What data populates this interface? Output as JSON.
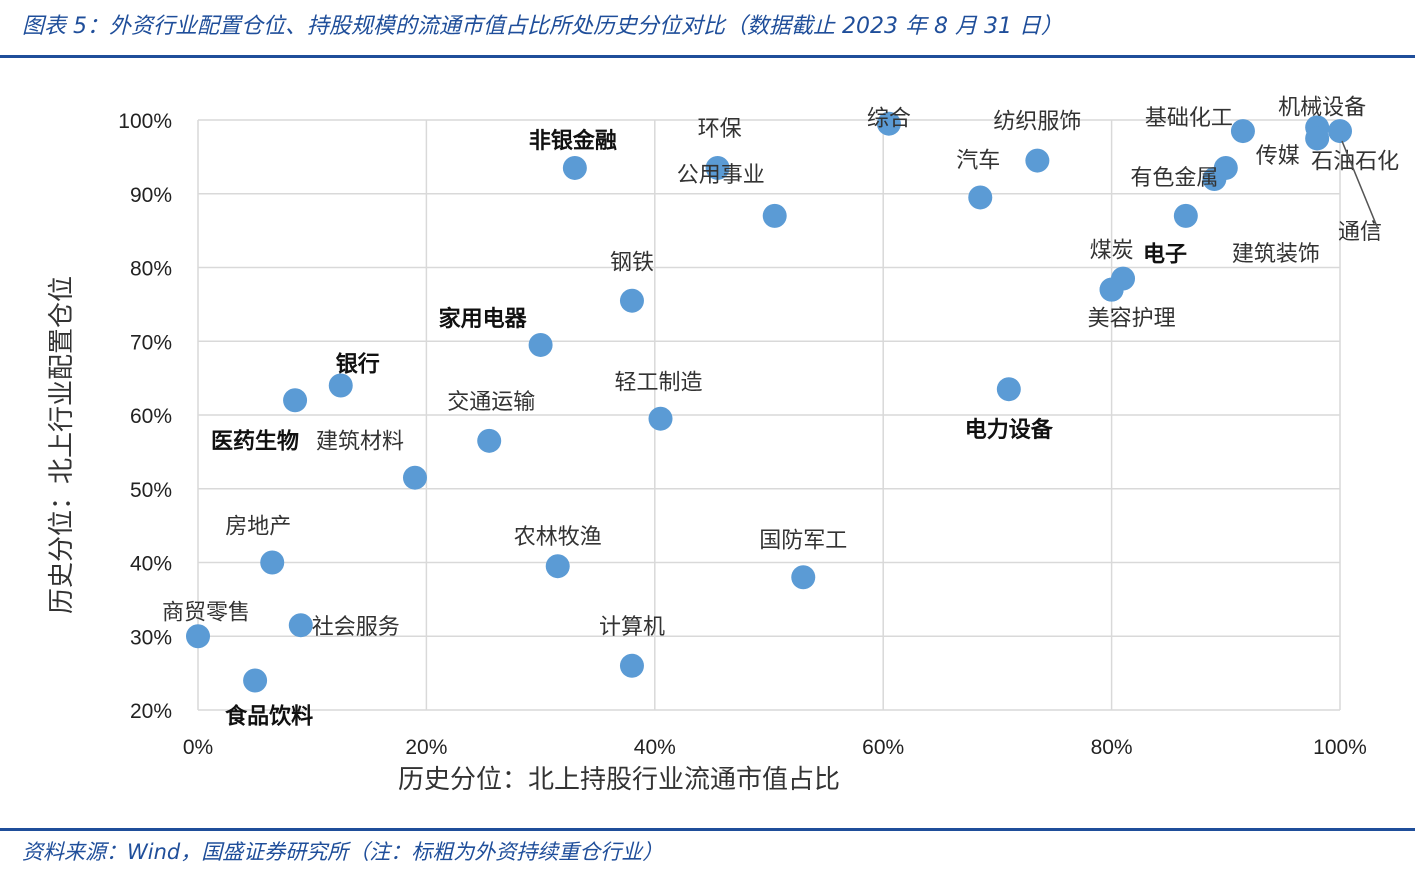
{
  "figure": {
    "title": "图表 5：外资行业配置仓位、持股规模的流通市值占比所处历史分位对比（数据截止 2023 年 8 月 31 日）",
    "source": "资料来源：Wind，国盛证券研究所（注：标粗为外资持续重仓行业）"
  },
  "colors": {
    "point": "#5b9bd5",
    "grid": "#d9d9d9",
    "accent": "#1f4e9a"
  },
  "chart_data": {
    "type": "scatter",
    "xlabel": "历史分位：北上持股行业流通市值占比",
    "ylabel": "历史分位：北上行业配置仓位",
    "xlim": [
      0,
      100
    ],
    "ylim": [
      20,
      100
    ],
    "x_ticks": [
      "0%",
      "20%",
      "40%",
      "60%",
      "80%",
      "100%"
    ],
    "y_ticks": [
      "20%",
      "30%",
      "40%",
      "50%",
      "60%",
      "70%",
      "80%",
      "90%",
      "100%"
    ],
    "grid": true,
    "points": [
      {
        "name": "非银金融",
        "x": 33.0,
        "y": 93.5,
        "bold": true
      },
      {
        "name": "环保",
        "x": 45.5,
        "y": 93.5,
        "bold": false
      },
      {
        "name": "公用事业",
        "x": 50.5,
        "y": 87.0,
        "bold": false
      },
      {
        "name": "综合",
        "x": 60.5,
        "y": 99.5,
        "bold": false
      },
      {
        "name": "汽车",
        "x": 68.5,
        "y": 89.5,
        "bold": false
      },
      {
        "name": "纺织服饰",
        "x": 73.5,
        "y": 94.5,
        "bold": false
      },
      {
        "name": "基础化工",
        "x": 91.5,
        "y": 98.5,
        "bold": false
      },
      {
        "name": "有色金属",
        "x": 89.0,
        "y": 92.0,
        "bold": false
      },
      {
        "name": "传媒",
        "x": 90.0,
        "y": 93.5,
        "bold": false
      },
      {
        "name": "机械设备",
        "x": 98.0,
        "y": 99.0,
        "bold": false
      },
      {
        "name": "石油石化",
        "x": 98.0,
        "y": 97.5,
        "bold": false
      },
      {
        "name": "通信",
        "x": 100.0,
        "y": 98.5,
        "bold": false
      },
      {
        "name": "建筑装饰",
        "x": 86.5,
        "y": 87.0,
        "bold": false
      },
      {
        "name": "煤炭",
        "x": 80.0,
        "y": 77.0,
        "bold": false
      },
      {
        "name": "电子",
        "x": 81.0,
        "y": 78.5,
        "bold": true
      },
      {
        "name": "钢铁",
        "x": 38.0,
        "y": 75.5,
        "bold": false
      },
      {
        "name": "家用电器",
        "x": 30.0,
        "y": 69.5,
        "bold": true
      },
      {
        "name": "银行",
        "x": 12.5,
        "y": 64.0,
        "bold": true
      },
      {
        "name": "医药生物",
        "x": 8.5,
        "y": 62.0,
        "bold": true
      },
      {
        "name": "交通运输",
        "x": 25.5,
        "y": 56.5,
        "bold": false
      },
      {
        "name": "轻工制造",
        "x": 40.5,
        "y": 59.5,
        "bold": false
      },
      {
        "name": "建筑材料",
        "x": 19.0,
        "y": 51.5,
        "bold": false
      },
      {
        "name": "电力设备",
        "x": 71.0,
        "y": 63.5,
        "bold": true
      },
      {
        "name": "房地产",
        "x": 6.5,
        "y": 40.0,
        "bold": false
      },
      {
        "name": "农林牧渔",
        "x": 31.5,
        "y": 39.5,
        "bold": false
      },
      {
        "name": "国防军工",
        "x": 53.0,
        "y": 38.0,
        "bold": false
      },
      {
        "name": "商贸零售",
        "x": 0.0,
        "y": 30.0,
        "bold": false
      },
      {
        "name": "社会服务",
        "x": 9.0,
        "y": 31.5,
        "bold": false
      },
      {
        "name": "计算机",
        "x": 38.0,
        "y": 26.0,
        "bold": false
      },
      {
        "name": "食品饮料",
        "x": 5.0,
        "y": 24.0,
        "bold": true
      },
      {
        "name": "美容护理",
        "x": 80.0,
        "y": 77.0,
        "bold": false
      }
    ]
  }
}
